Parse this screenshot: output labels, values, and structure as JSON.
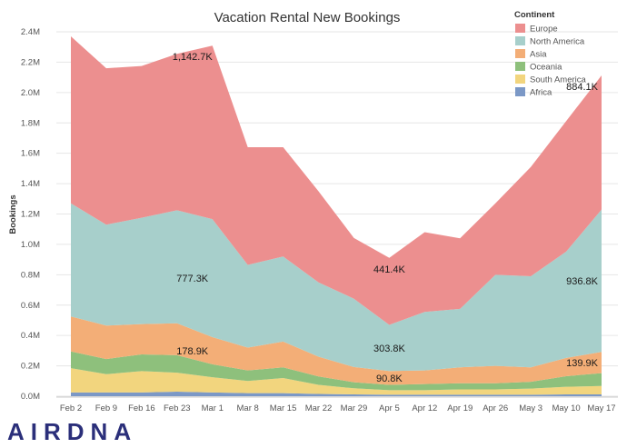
{
  "chart_data": {
    "type": "area",
    "stacked": true,
    "title": "Vacation Rental New Bookings",
    "ylabel": "Bookings",
    "xlabel": "",
    "categories": [
      "Feb 2",
      "Feb 9",
      "Feb 16",
      "Feb 23",
      "Mar 1",
      "Mar 8",
      "Mar 15",
      "Mar 22",
      "Mar 29",
      "Apr 5",
      "Apr 12",
      "Apr 19",
      "Apr 26",
      "May 3",
      "May 10",
      "May 17"
    ],
    "ylim": [
      0,
      2.4
    ],
    "yticks": [
      "0.0M",
      "0.2M",
      "0.4M",
      "0.6M",
      "0.8M",
      "1.0M",
      "1.2M",
      "1.4M",
      "1.6M",
      "1.8M",
      "2.0M",
      "2.2M",
      "2.4M"
    ],
    "grid": true,
    "legend": {
      "title": "Continent",
      "position": "top-right"
    },
    "series": [
      {
        "name": "Africa",
        "color": "#7b98c6",
        "values": [
          0.025,
          0.025,
          0.025,
          0.03,
          0.025,
          0.02,
          0.02,
          0.015,
          0.012,
          0.01,
          0.01,
          0.01,
          0.01,
          0.01,
          0.012,
          0.012
        ]
      },
      {
        "name": "South America",
        "color": "#f2d57e",
        "values": [
          0.16,
          0.12,
          0.14,
          0.125,
          0.1,
          0.08,
          0.1,
          0.06,
          0.04,
          0.03,
          0.03,
          0.035,
          0.035,
          0.04,
          0.05,
          0.055
        ]
      },
      {
        "name": "Oceania",
        "color": "#8ec07c",
        "values": [
          0.11,
          0.1,
          0.11,
          0.115,
          0.085,
          0.07,
          0.07,
          0.055,
          0.04,
          0.035,
          0.04,
          0.04,
          0.04,
          0.045,
          0.07,
          0.085
        ]
      },
      {
        "name": "Asia",
        "color": "#f3ae77",
        "values": [
          0.23,
          0.22,
          0.2,
          0.21,
          0.179,
          0.15,
          0.17,
          0.13,
          0.1,
          0.091,
          0.09,
          0.105,
          0.115,
          0.095,
          0.12,
          0.14
        ]
      },
      {
        "name": "North America",
        "color": "#a7cfcb",
        "values": [
          0.745,
          0.665,
          0.7,
          0.745,
          0.777,
          0.545,
          0.56,
          0.49,
          0.45,
          0.304,
          0.385,
          0.385,
          0.6,
          0.6,
          0.7,
          0.937
        ]
      },
      {
        "name": "Europe",
        "color": "#ec8f8f",
        "values": [
          1.1,
          1.03,
          1.0,
          1.03,
          1.143,
          0.775,
          0.72,
          0.6,
          0.4,
          0.441,
          0.525,
          0.465,
          0.47,
          0.72,
          0.86,
          0.884
        ]
      }
    ],
    "annotations": [
      {
        "series": "Europe",
        "category": "Mar 1",
        "text": "1,142.7K"
      },
      {
        "series": "North America",
        "category": "Mar 1",
        "text": "777.3K"
      },
      {
        "series": "Asia",
        "category": "Mar 1",
        "text": "178.9K"
      },
      {
        "series": "Europe",
        "category": "Apr 5",
        "text": "441.4K"
      },
      {
        "series": "North America",
        "category": "Apr 5",
        "text": "303.8K"
      },
      {
        "series": "Asia",
        "category": "Apr 5",
        "text": "90.8K"
      },
      {
        "series": "Europe",
        "category": "May 17",
        "text": "884.1K"
      },
      {
        "series": "North America",
        "category": "May 17",
        "text": "936.8K"
      },
      {
        "series": "Asia",
        "category": "May 17",
        "text": "139.9K"
      }
    ]
  },
  "brand": {
    "logo_text": "AIRDNA",
    "color": "#2b2f7a"
  }
}
